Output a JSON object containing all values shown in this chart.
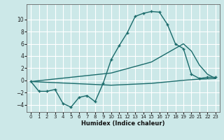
{
  "xlabel": "Humidex (Indice chaleur)",
  "bg_color": "#cce8e8",
  "grid_color": "#ffffff",
  "line_color": "#1a6b6b",
  "xlim": [
    -0.5,
    23.5
  ],
  "ylim": [
    -5.2,
    12.5
  ],
  "yticks": [
    -4,
    -2,
    0,
    2,
    4,
    6,
    8,
    10
  ],
  "xticks": [
    0,
    1,
    2,
    3,
    4,
    5,
    6,
    7,
    8,
    9,
    10,
    11,
    12,
    13,
    14,
    15,
    16,
    17,
    18,
    19,
    20,
    21,
    22,
    23
  ],
  "line1_x": [
    0,
    1,
    2,
    3,
    4,
    5,
    6,
    7,
    8,
    9,
    10,
    11,
    12,
    13,
    14,
    15,
    16,
    17,
    18,
    19,
    20,
    21,
    22,
    23
  ],
  "line1_y": [
    -0.2,
    -1.8,
    -1.8,
    -1.5,
    -3.8,
    -4.4,
    -2.8,
    -2.5,
    -3.5,
    -0.5,
    3.4,
    5.7,
    7.8,
    10.5,
    11.0,
    11.3,
    11.2,
    9.2,
    6.0,
    5.2,
    1.0,
    0.3,
    0.5,
    0.5
  ],
  "line2_x": [
    0,
    10,
    15,
    19,
    20,
    21,
    22,
    23
  ],
  "line2_y": [
    -0.2,
    -0.8,
    -0.5,
    0.0,
    0.1,
    0.2,
    0.25,
    0.3
  ],
  "line3_x": [
    0,
    10,
    15,
    19,
    20,
    21,
    22,
    23
  ],
  "line3_y": [
    -0.2,
    1.2,
    3.0,
    6.0,
    4.8,
    2.5,
    1.0,
    0.3
  ]
}
